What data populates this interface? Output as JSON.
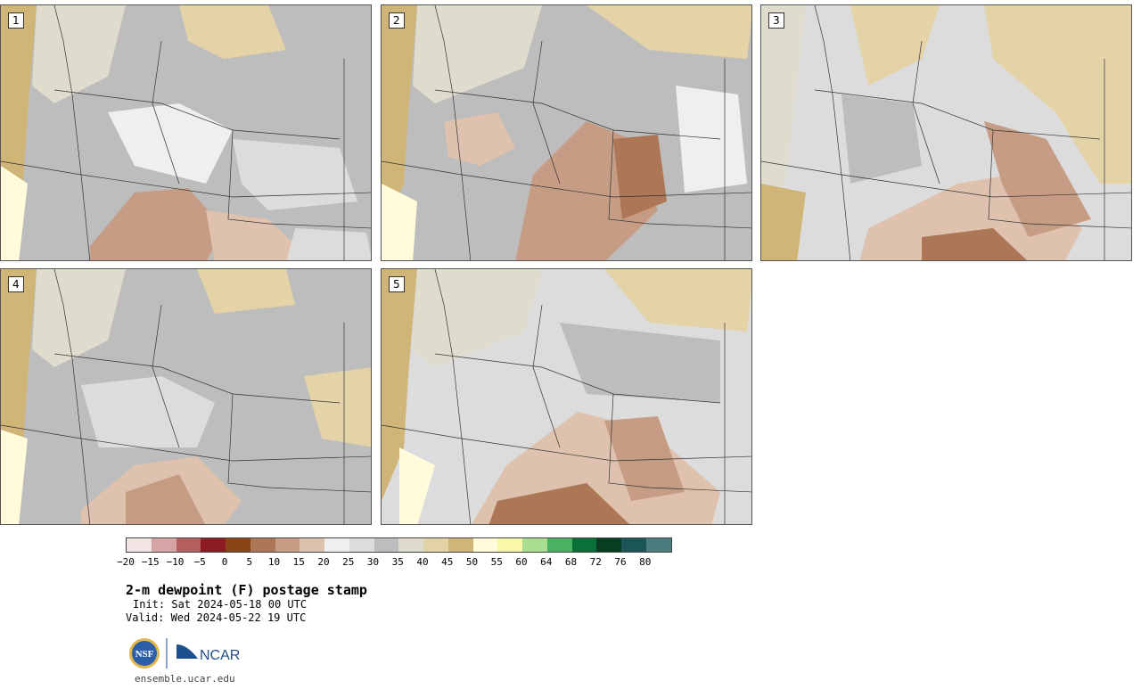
{
  "panels": [
    {
      "label": "1"
    },
    {
      "label": "2"
    },
    {
      "label": "3"
    },
    {
      "label": "4"
    },
    {
      "label": "5"
    }
  ],
  "colorbar": {
    "colors": [
      "#f2e4e2",
      "#d6a4a4",
      "#b65f5f",
      "#8c1c22",
      "#8a4514",
      "#ad7656",
      "#c79c84",
      "#dfc2ae",
      "#efefef",
      "#dcdcdc",
      "#bdbdbd",
      "#e0dccd",
      "#e4d3a7",
      "#cfb577",
      "#fffbdb",
      "#f9f7a9",
      "#a9dd8f",
      "#4ab062",
      "#097038",
      "#083d24",
      "#1c5558",
      "#4d7c7e"
    ],
    "tick_labels": [
      "−20",
      "−15",
      "−10",
      "−5",
      "0",
      "5",
      "10",
      "15",
      "20",
      "25",
      "30",
      "35",
      "40",
      "45",
      "50",
      "55",
      "60",
      "64",
      "68",
      "72",
      "76",
      "80"
    ]
  },
  "title": "2-m dewpoint (F) postage stamp",
  "init": "Init: Sat 2024-05-18 00 UTC",
  "valid": "Valid: Wed 2024-05-22 19 UTC",
  "logos": {
    "nsf": "NSF",
    "ncar": "NCAR"
  },
  "url": "ensemble.ucar.edu"
}
